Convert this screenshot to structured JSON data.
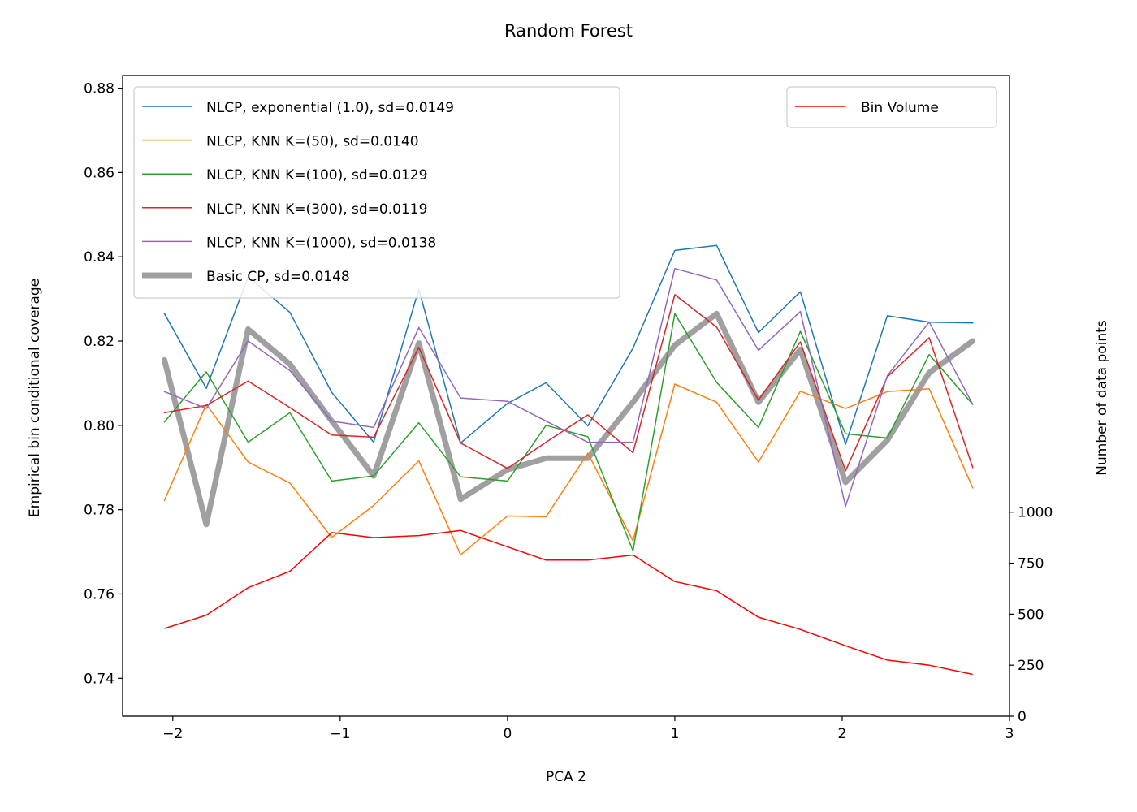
{
  "chart_data": {
    "type": "line",
    "title": "Random Forest",
    "xlabel": "PCA 2",
    "ylabel": "Empirical bin conditional coverage",
    "y2label": "Number of data points",
    "xlim": [
      -2.3,
      3.0
    ],
    "ylim": [
      0.731,
      0.883
    ],
    "y2lim": [
      0,
      3140
    ],
    "xticks": [
      -2,
      -1,
      0,
      1,
      2,
      3
    ],
    "xtick_labels": [
      "−2",
      "−1",
      "0",
      "1",
      "2",
      "3"
    ],
    "yticks": [
      0.74,
      0.76,
      0.78,
      0.8,
      0.82,
      0.84,
      0.86,
      0.88
    ],
    "ytick_labels": [
      "0.74",
      "0.76",
      "0.78",
      "0.80",
      "0.82",
      "0.84",
      "0.86",
      "0.88"
    ],
    "y2ticks": [
      0,
      250,
      500,
      750,
      1000
    ],
    "y2tick_labels": [
      "0",
      "250",
      "500",
      "750",
      "1000"
    ],
    "legend_position": "upper-left",
    "legend2_position": "upper-right",
    "x": [
      -2.05,
      -1.8,
      -1.55,
      -1.3,
      -1.05,
      -0.8,
      -0.53,
      -0.28,
      0.0,
      0.23,
      0.48,
      0.75,
      1.0,
      1.25,
      1.5,
      1.75,
      2.02,
      2.27,
      2.52,
      2.78
    ],
    "series": [
      {
        "name": "NLCP, exponential (1.0), sd=0.0149",
        "color": "#1f77b4",
        "width": 1.5,
        "values": [
          0.8265,
          0.8088,
          0.8352,
          0.8268,
          0.8078,
          0.796,
          0.8323,
          0.7958,
          0.8052,
          0.8101,
          0.7999,
          0.8183,
          0.8415,
          0.8427,
          0.822,
          0.8317,
          0.7955,
          0.826,
          0.8245,
          0.8243
        ]
      },
      {
        "name": "NLCP, KNN K=(50), sd=0.0140",
        "color": "#ff7f0e",
        "width": 1.5,
        "values": [
          0.7822,
          0.805,
          0.7913,
          0.7863,
          0.7734,
          0.781,
          0.7916,
          0.7693,
          0.7785,
          0.7783,
          0.7934,
          0.7726,
          0.8098,
          0.8055,
          0.7913,
          0.8081,
          0.804,
          0.808,
          0.8087,
          0.7852
        ]
      },
      {
        "name": "NLCP, KNN K=(100), sd=0.0129",
        "color": "#2ca02c",
        "width": 1.5,
        "values": [
          0.8008,
          0.8127,
          0.796,
          0.803,
          0.7868,
          0.788,
          0.8006,
          0.7878,
          0.7868,
          0.8,
          0.7973,
          0.7702,
          0.8265,
          0.8102,
          0.7995,
          0.8223,
          0.798,
          0.797,
          0.8168,
          0.805
        ]
      },
      {
        "name": "NLCP, KNN K=(300), sd=0.0119",
        "color": "#d62728",
        "width": 1.5,
        "values": [
          0.803,
          0.8047,
          0.8105,
          0.8042,
          0.7977,
          0.7972,
          0.8185,
          0.7958,
          0.7898,
          0.796,
          0.8025,
          0.7935,
          0.831,
          0.8233,
          0.806,
          0.8198,
          0.7892,
          0.8115,
          0.8208,
          0.79
        ]
      },
      {
        "name": "NLCP, KNN K=(1000), sd=0.0138",
        "color": "#9467bd",
        "width": 1.5,
        "values": [
          0.808,
          0.804,
          0.82,
          0.813,
          0.801,
          0.7995,
          0.8232,
          0.8065,
          0.8057,
          0.801,
          0.796,
          0.796,
          0.8372,
          0.8345,
          0.8178,
          0.827,
          0.7808,
          0.8118,
          0.8245,
          0.805
        ]
      },
      {
        "name": "Basic CP, sd=0.0148",
        "color": "#808080",
        "width": 7,
        "opacity": 0.75,
        "values": [
          0.8155,
          0.7765,
          0.8228,
          0.8145,
          0.801,
          0.788,
          0.8195,
          0.7825,
          0.7895,
          0.7922,
          0.7922,
          0.8055,
          0.819,
          0.8265,
          0.8055,
          0.818,
          0.7865,
          0.7965,
          0.8125,
          0.82
        ]
      }
    ],
    "secondary_series": {
      "name": "Bin Volume",
      "color": "#ff0000",
      "width": 1.5,
      "values": [
        430,
        495,
        630,
        710,
        900,
        875,
        885,
        910,
        830,
        765,
        765,
        790,
        660,
        615,
        485,
        425,
        345,
        275,
        250,
        205
      ]
    }
  }
}
